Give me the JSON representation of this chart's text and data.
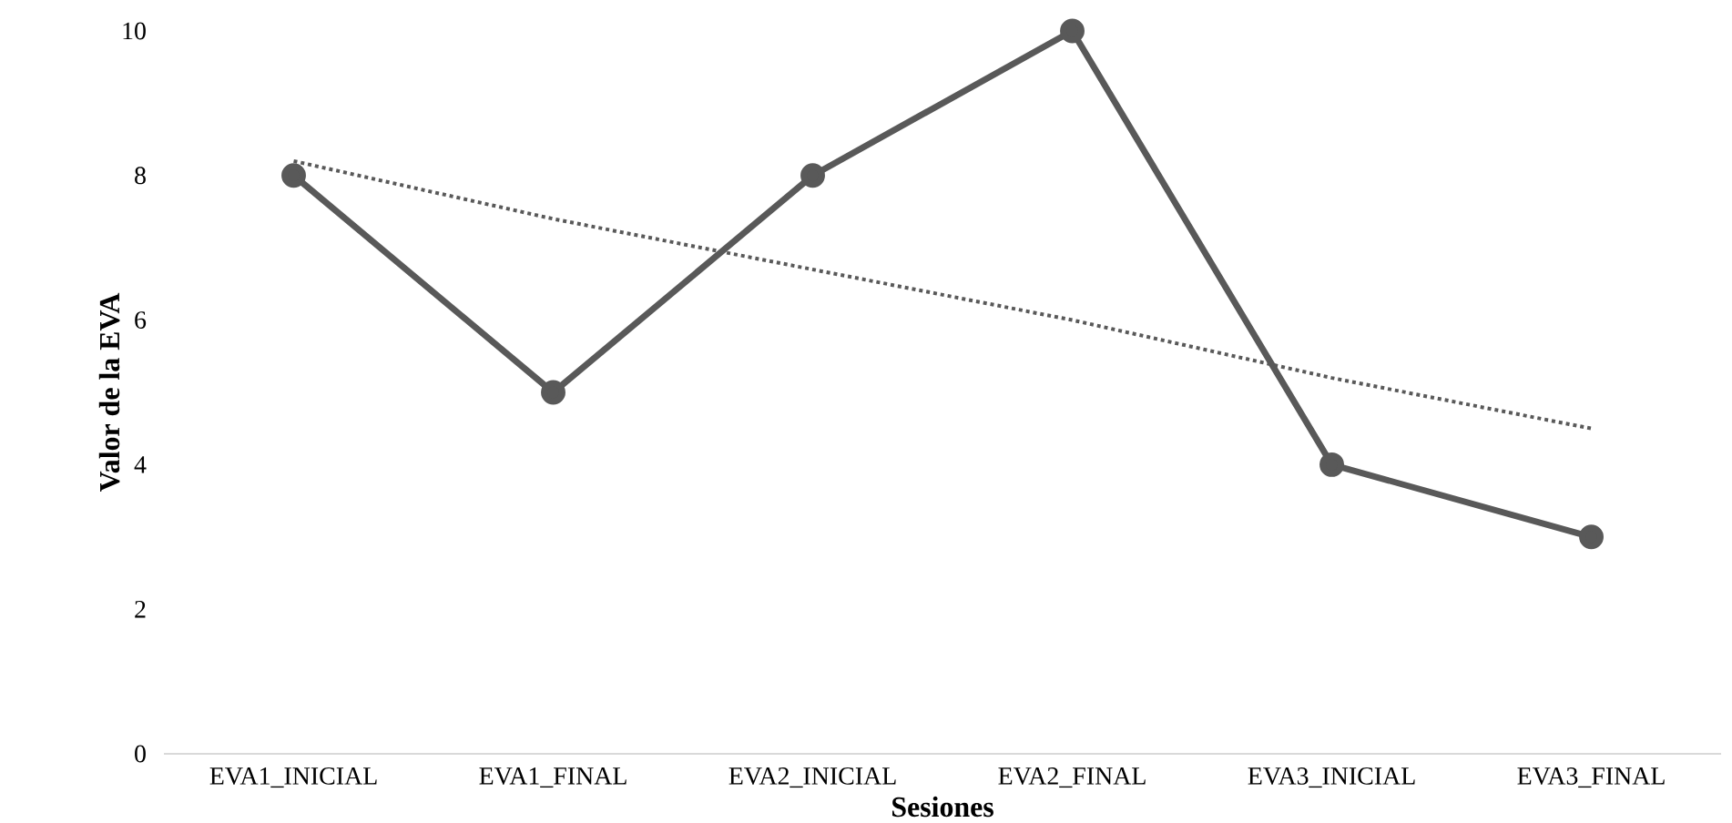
{
  "chart_data": {
    "type": "line",
    "xlabel": "Sesiones",
    "ylabel": "Valor de la EVA",
    "categories": [
      "EVA1_INICIAL",
      "EVA1_FINAL",
      "EVA2_INICIAL",
      "EVA2_FINAL",
      "EVA3_INICIAL",
      "EVA3_FINAL"
    ],
    "series": [
      {
        "color": "#595959",
        "values": [
          8,
          5,
          8,
          10,
          4,
          3
        ],
        "marker": "circle",
        "line_style": "solid"
      },
      {
        "color": "#595959",
        "values": [
          8.2,
          7.4,
          6.7,
          6.0,
          5.2,
          4.5
        ],
        "marker": "none",
        "line_style": "dotted"
      }
    ],
    "ylim": [
      0,
      10
    ],
    "yticks": [
      0,
      2,
      4,
      6,
      8,
      10
    ],
    "grid": false
  }
}
